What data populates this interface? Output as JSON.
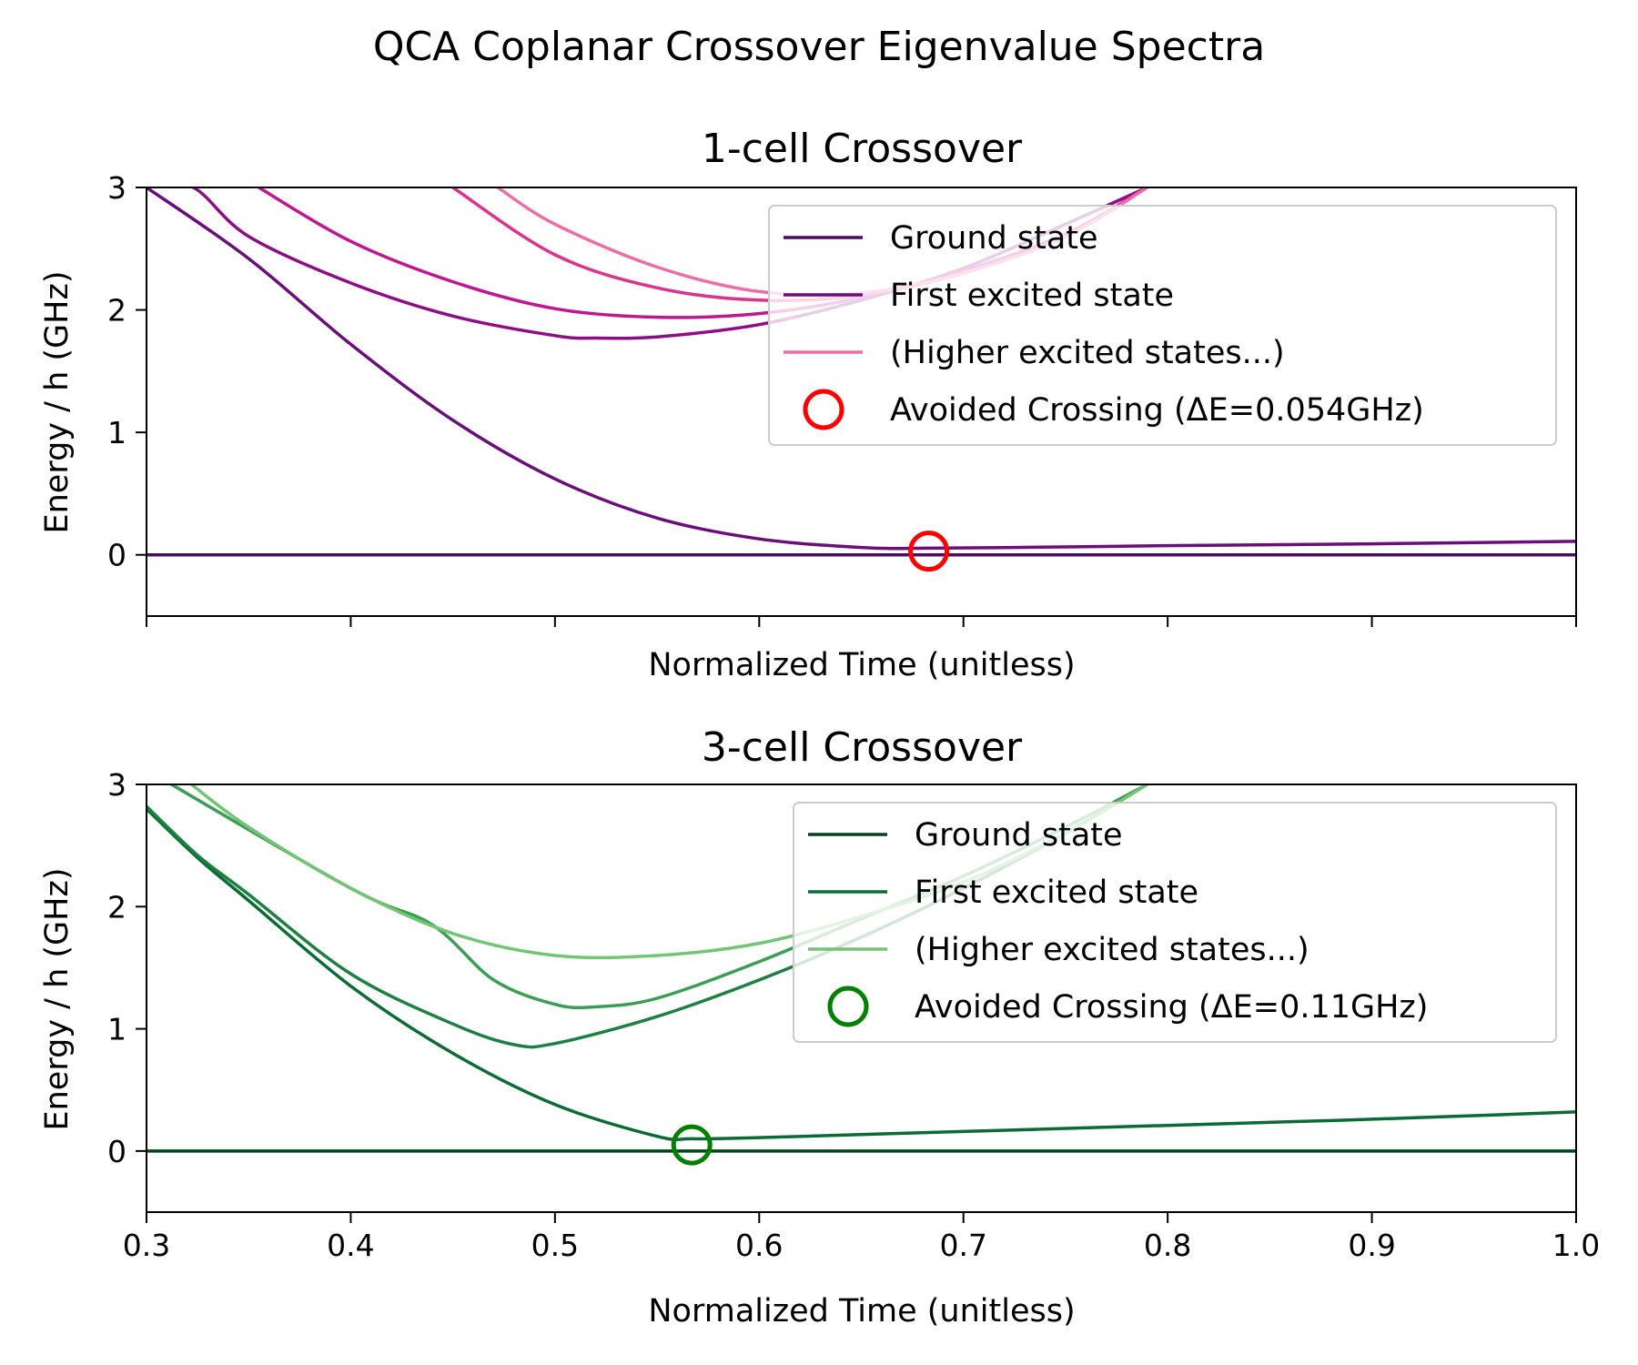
{
  "figure": {
    "title": "QCA Coplanar Crossover Eigenvalue Spectra"
  },
  "chart_data": [
    {
      "type": "line",
      "title": "1-cell Crossover",
      "xlabel": "Normalized Time (unitless)",
      "ylabel": "Energy / h (GHz)",
      "xlim": [
        0.3,
        1.0
      ],
      "ylim": [
        -0.5,
        3.0
      ],
      "x_ticks": [
        0.3,
        0.4,
        0.5,
        0.6,
        0.7,
        0.8,
        0.9,
        1.0
      ],
      "x_tick_labels_shown": false,
      "y_ticks": [
        "0",
        "1",
        "2",
        "3"
      ],
      "grid": false,
      "legend_position": "upper-right",
      "series": [
        {
          "name": "Ground state",
          "legend": true,
          "color": "#4a0c5e",
          "x": [
            0.3,
            1.0
          ],
          "y": [
            0.0,
            0.0
          ]
        },
        {
          "name": "First excited state",
          "legend": true,
          "color": "#6a0f7a",
          "x": [
            0.3,
            0.35,
            0.4,
            0.45,
            0.5,
            0.55,
            0.6,
            0.65,
            0.683,
            0.75,
            0.8,
            0.9,
            1.0
          ],
          "y": [
            3.0,
            2.42,
            1.72,
            1.1,
            0.62,
            0.3,
            0.13,
            0.06,
            0.054,
            0.065,
            0.075,
            0.09,
            0.11
          ]
        },
        {
          "name": "",
          "legend": false,
          "color": "#8e0d87",
          "x": [
            0.3,
            0.323,
            0.35,
            0.4,
            0.45,
            0.5,
            0.52,
            0.55,
            0.6,
            0.65,
            0.7,
            0.75,
            0.79
          ],
          "y": [
            3.05,
            3.0,
            2.6,
            2.22,
            1.95,
            1.79,
            1.77,
            1.78,
            1.88,
            2.08,
            2.34,
            2.7,
            3.0
          ]
        },
        {
          "name": "",
          "legend": false,
          "color": "#c0168f",
          "x": [
            0.355,
            0.4,
            0.45,
            0.5,
            0.55,
            0.6,
            0.65,
            0.7,
            0.75,
            0.79
          ],
          "y": [
            3.0,
            2.56,
            2.23,
            2.01,
            1.94,
            1.97,
            2.1,
            2.32,
            2.62,
            3.0
          ]
        },
        {
          "name": "",
          "legend": false,
          "color": "#d9358f",
          "x": [
            0.45,
            0.5,
            0.55,
            0.6,
            0.65,
            0.7,
            0.75,
            0.79
          ],
          "y": [
            3.0,
            2.45,
            2.18,
            2.08,
            2.12,
            2.3,
            2.6,
            3.0
          ]
        },
        {
          "name": "(Higher excited states...)",
          "legend": true,
          "color": "#ee6da8",
          "x": [
            0.472,
            0.5,
            0.55,
            0.6,
            0.65,
            0.7,
            0.75,
            0.79
          ],
          "y": [
            3.0,
            2.7,
            2.35,
            2.15,
            2.14,
            2.3,
            2.6,
            3.0
          ]
        }
      ],
      "annotations": [
        {
          "label": "Avoided Crossing (ΔE=0.054GHz)",
          "x": 0.683,
          "y": 0.03,
          "marker": "circle",
          "color": "#ff0000"
        }
      ]
    },
    {
      "type": "line",
      "title": "3-cell Crossover",
      "xlabel": "Normalized Time (unitless)",
      "ylabel": "Energy / h (GHz)",
      "xlim": [
        0.3,
        1.0
      ],
      "ylim": [
        -0.5,
        3.0
      ],
      "x_ticks": [
        "0.3",
        "0.4",
        "0.5",
        "0.6",
        "0.7",
        "0.8",
        "0.9",
        "1.0"
      ],
      "x_tick_labels_shown": true,
      "y_ticks": [
        "0",
        "1",
        "2",
        "3"
      ],
      "grid": false,
      "legend_position": "upper-right",
      "series": [
        {
          "name": "Ground state",
          "legend": true,
          "color": "#00441b",
          "x": [
            0.3,
            1.0
          ],
          "y": [
            0.0,
            0.0
          ]
        },
        {
          "name": "First excited state",
          "legend": true,
          "color": "#0b6b34",
          "x": [
            0.3,
            0.325,
            0.35,
            0.4,
            0.45,
            0.5,
            0.55,
            0.567,
            0.6,
            0.7,
            0.8,
            0.9,
            1.0
          ],
          "y": [
            2.8,
            2.4,
            2.05,
            1.35,
            0.8,
            0.38,
            0.12,
            0.1,
            0.11,
            0.16,
            0.21,
            0.26,
            0.32
          ]
        },
        {
          "name": "",
          "legend": false,
          "color": "#1e8040",
          "x": [
            0.3,
            0.325,
            0.35,
            0.4,
            0.45,
            0.48,
            0.5,
            0.55,
            0.6,
            0.65,
            0.7,
            0.75,
            0.79
          ],
          "y": [
            2.82,
            2.42,
            2.1,
            1.45,
            1.04,
            0.87,
            0.88,
            1.1,
            1.4,
            1.75,
            2.15,
            2.6,
            3.0
          ]
        },
        {
          "name": "",
          "legend": false,
          "color": "#3a9e55",
          "x": [
            0.3,
            0.4,
            0.44,
            0.47,
            0.5,
            0.52,
            0.55,
            0.6,
            0.65,
            0.7,
            0.75,
            0.79
          ],
          "y": [
            3.12,
            2.15,
            1.85,
            1.4,
            1.2,
            1.18,
            1.25,
            1.55,
            1.9,
            2.25,
            2.65,
            3.0
          ]
        },
        {
          "name": "(Higher excited states...)",
          "legend": true,
          "color": "#74c476",
          "x": [
            0.322,
            0.35,
            0.4,
            0.45,
            0.5,
            0.55,
            0.6,
            0.65,
            0.7,
            0.75,
            0.79
          ],
          "y": [
            3.0,
            2.65,
            2.15,
            1.78,
            1.6,
            1.6,
            1.7,
            1.92,
            2.2,
            2.6,
            3.0
          ]
        }
      ],
      "annotations": [
        {
          "label": "Avoided Crossing (ΔE=0.11GHz)",
          "x": 0.567,
          "y": 0.05,
          "marker": "circle",
          "color": "#008000"
        }
      ]
    }
  ]
}
